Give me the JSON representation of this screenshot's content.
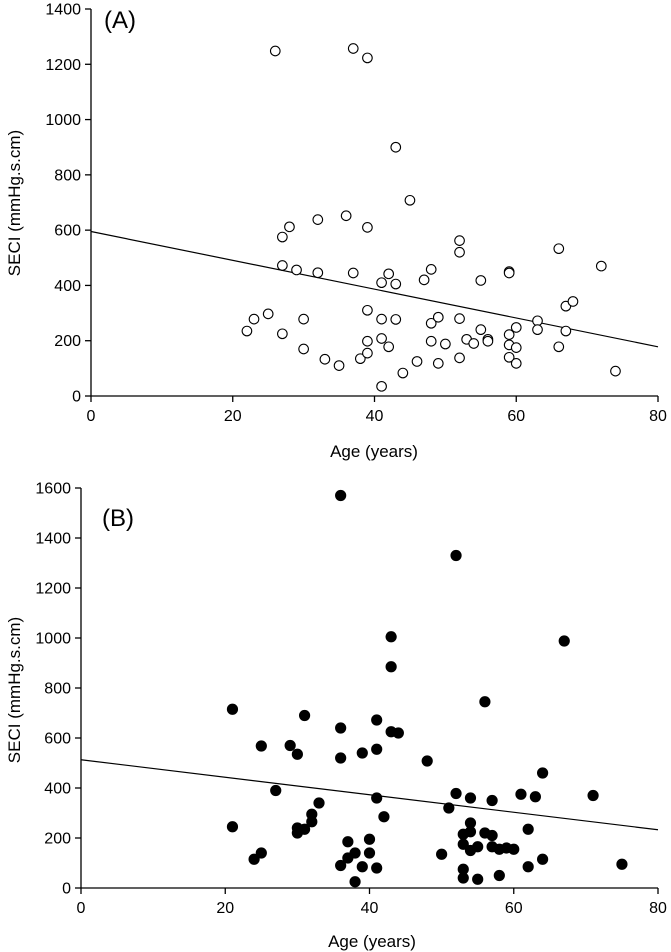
{
  "chart_data": [
    {
      "type": "scatter",
      "panel_label": "(A)",
      "marker": "open-circle",
      "xlabel": "Age (years)",
      "ylabel": "SECI (mmHg.s.cm)",
      "xlim": [
        0,
        80
      ],
      "ylim": [
        0,
        1400
      ],
      "xticks": [
        0,
        20,
        40,
        60,
        80
      ],
      "yticks": [
        0,
        200,
        400,
        600,
        800,
        1000,
        1200,
        1400
      ],
      "regression": {
        "x": [
          0,
          80
        ],
        "y": [
          595,
          178
        ]
      },
      "points": [
        {
          "x": 22,
          "y": 235
        },
        {
          "x": 23,
          "y": 278
        },
        {
          "x": 25,
          "y": 297
        },
        {
          "x": 26,
          "y": 1248
        },
        {
          "x": 27,
          "y": 575
        },
        {
          "x": 27,
          "y": 472
        },
        {
          "x": 27,
          "y": 225
        },
        {
          "x": 28,
          "y": 612
        },
        {
          "x": 29,
          "y": 456
        },
        {
          "x": 30,
          "y": 278
        },
        {
          "x": 30,
          "y": 170
        },
        {
          "x": 32,
          "y": 638
        },
        {
          "x": 32,
          "y": 446
        },
        {
          "x": 33,
          "y": 133
        },
        {
          "x": 35,
          "y": 110
        },
        {
          "x": 36,
          "y": 652
        },
        {
          "x": 37,
          "y": 1257
        },
        {
          "x": 37,
          "y": 445
        },
        {
          "x": 38,
          "y": 135
        },
        {
          "x": 39,
          "y": 1223
        },
        {
          "x": 39,
          "y": 610
        },
        {
          "x": 39,
          "y": 310
        },
        {
          "x": 39,
          "y": 198
        },
        {
          "x": 39,
          "y": 155
        },
        {
          "x": 41,
          "y": 410
        },
        {
          "x": 41,
          "y": 278
        },
        {
          "x": 41,
          "y": 208
        },
        {
          "x": 41,
          "y": 35
        },
        {
          "x": 42,
          "y": 442
        },
        {
          "x": 42,
          "y": 178
        },
        {
          "x": 43,
          "y": 900
        },
        {
          "x": 43,
          "y": 405
        },
        {
          "x": 43,
          "y": 277
        },
        {
          "x": 44,
          "y": 83
        },
        {
          "x": 45,
          "y": 708
        },
        {
          "x": 46,
          "y": 125
        },
        {
          "x": 47,
          "y": 420
        },
        {
          "x": 48,
          "y": 458
        },
        {
          "x": 48,
          "y": 263
        },
        {
          "x": 48,
          "y": 198
        },
        {
          "x": 49,
          "y": 285
        },
        {
          "x": 49,
          "y": 118
        },
        {
          "x": 50,
          "y": 188
        },
        {
          "x": 52,
          "y": 562
        },
        {
          "x": 52,
          "y": 520
        },
        {
          "x": 52,
          "y": 280
        },
        {
          "x": 52,
          "y": 138
        },
        {
          "x": 53,
          "y": 205
        },
        {
          "x": 54,
          "y": 190
        },
        {
          "x": 55,
          "y": 418
        },
        {
          "x": 55,
          "y": 240
        },
        {
          "x": 56,
          "y": 205
        },
        {
          "x": 56,
          "y": 198
        },
        {
          "x": 59,
          "y": 450
        },
        {
          "x": 59,
          "y": 445
        },
        {
          "x": 59,
          "y": 222
        },
        {
          "x": 59,
          "y": 185
        },
        {
          "x": 59,
          "y": 140
        },
        {
          "x": 60,
          "y": 248
        },
        {
          "x": 60,
          "y": 175
        },
        {
          "x": 60,
          "y": 118
        },
        {
          "x": 63,
          "y": 272
        },
        {
          "x": 63,
          "y": 240
        },
        {
          "x": 66,
          "y": 533
        },
        {
          "x": 66,
          "y": 178
        },
        {
          "x": 67,
          "y": 325
        },
        {
          "x": 67,
          "y": 235
        },
        {
          "x": 68,
          "y": 342
        },
        {
          "x": 72,
          "y": 470
        },
        {
          "x": 74,
          "y": 90
        }
      ]
    },
    {
      "type": "scatter",
      "panel_label": "(B)",
      "marker": "filled-circle",
      "xlabel": "Age (years)",
      "ylabel": "SECI (mmHg.s.cm)",
      "xlim": [
        0,
        80
      ],
      "ylim": [
        0,
        1600
      ],
      "xticks": [
        0,
        20,
        40,
        60,
        80
      ],
      "yticks": [
        0,
        200,
        400,
        600,
        800,
        1000,
        1200,
        1400,
        1600
      ],
      "regression": {
        "x": [
          0,
          80
        ],
        "y": [
          513,
          233
        ]
      },
      "points": [
        {
          "x": 21,
          "y": 715
        },
        {
          "x": 21,
          "y": 245
        },
        {
          "x": 24,
          "y": 115
        },
        {
          "x": 25,
          "y": 568
        },
        {
          "x": 25,
          "y": 140
        },
        {
          "x": 27,
          "y": 390
        },
        {
          "x": 29,
          "y": 570
        },
        {
          "x": 30,
          "y": 535
        },
        {
          "x": 30,
          "y": 240
        },
        {
          "x": 30,
          "y": 220
        },
        {
          "x": 31,
          "y": 690
        },
        {
          "x": 31,
          "y": 235
        },
        {
          "x": 32,
          "y": 295
        },
        {
          "x": 32,
          "y": 265
        },
        {
          "x": 33,
          "y": 340
        },
        {
          "x": 36,
          "y": 1570
        },
        {
          "x": 36,
          "y": 640
        },
        {
          "x": 36,
          "y": 520
        },
        {
          "x": 36,
          "y": 90
        },
        {
          "x": 37,
          "y": 185
        },
        {
          "x": 37,
          "y": 120
        },
        {
          "x": 38,
          "y": 140
        },
        {
          "x": 38,
          "y": 25
        },
        {
          "x": 39,
          "y": 540
        },
        {
          "x": 39,
          "y": 85
        },
        {
          "x": 40,
          "y": 195
        },
        {
          "x": 40,
          "y": 140
        },
        {
          "x": 41,
          "y": 672
        },
        {
          "x": 41,
          "y": 555
        },
        {
          "x": 41,
          "y": 360
        },
        {
          "x": 41,
          "y": 80
        },
        {
          "x": 42,
          "y": 285
        },
        {
          "x": 43,
          "y": 1005
        },
        {
          "x": 43,
          "y": 885
        },
        {
          "x": 43,
          "y": 625
        },
        {
          "x": 44,
          "y": 620
        },
        {
          "x": 48,
          "y": 508
        },
        {
          "x": 50,
          "y": 135
        },
        {
          "x": 51,
          "y": 320
        },
        {
          "x": 52,
          "y": 1330
        },
        {
          "x": 52,
          "y": 378
        },
        {
          "x": 53,
          "y": 215
        },
        {
          "x": 53,
          "y": 175
        },
        {
          "x": 53,
          "y": 75
        },
        {
          "x": 53,
          "y": 40
        },
        {
          "x": 54,
          "y": 360
        },
        {
          "x": 54,
          "y": 260
        },
        {
          "x": 54,
          "y": 225
        },
        {
          "x": 54,
          "y": 150
        },
        {
          "x": 55,
          "y": 165
        },
        {
          "x": 55,
          "y": 35
        },
        {
          "x": 56,
          "y": 745
        },
        {
          "x": 56,
          "y": 220
        },
        {
          "x": 57,
          "y": 350
        },
        {
          "x": 57,
          "y": 210
        },
        {
          "x": 57,
          "y": 165
        },
        {
          "x": 58,
          "y": 155
        },
        {
          "x": 58,
          "y": 50
        },
        {
          "x": 59,
          "y": 160
        },
        {
          "x": 60,
          "y": 155
        },
        {
          "x": 61,
          "y": 375
        },
        {
          "x": 62,
          "y": 235
        },
        {
          "x": 62,
          "y": 85
        },
        {
          "x": 63,
          "y": 365
        },
        {
          "x": 64,
          "y": 460
        },
        {
          "x": 64,
          "y": 115
        },
        {
          "x": 67,
          "y": 988
        },
        {
          "x": 71,
          "y": 370
        },
        {
          "x": 75,
          "y": 95
        }
      ]
    }
  ]
}
